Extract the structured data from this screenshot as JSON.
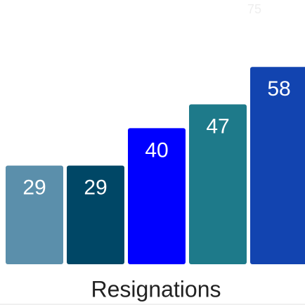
{
  "chart_data": {
    "type": "bar",
    "title": "Resignations",
    "values": [
      29,
      29,
      40,
      47,
      58
    ],
    "colors": [
      "#5b8fab",
      "#004766",
      "#0000ff",
      "#1e7a8a",
      "#1244b0"
    ],
    "ylim": [
      0,
      75
    ],
    "yticks": [
      75
    ]
  }
}
